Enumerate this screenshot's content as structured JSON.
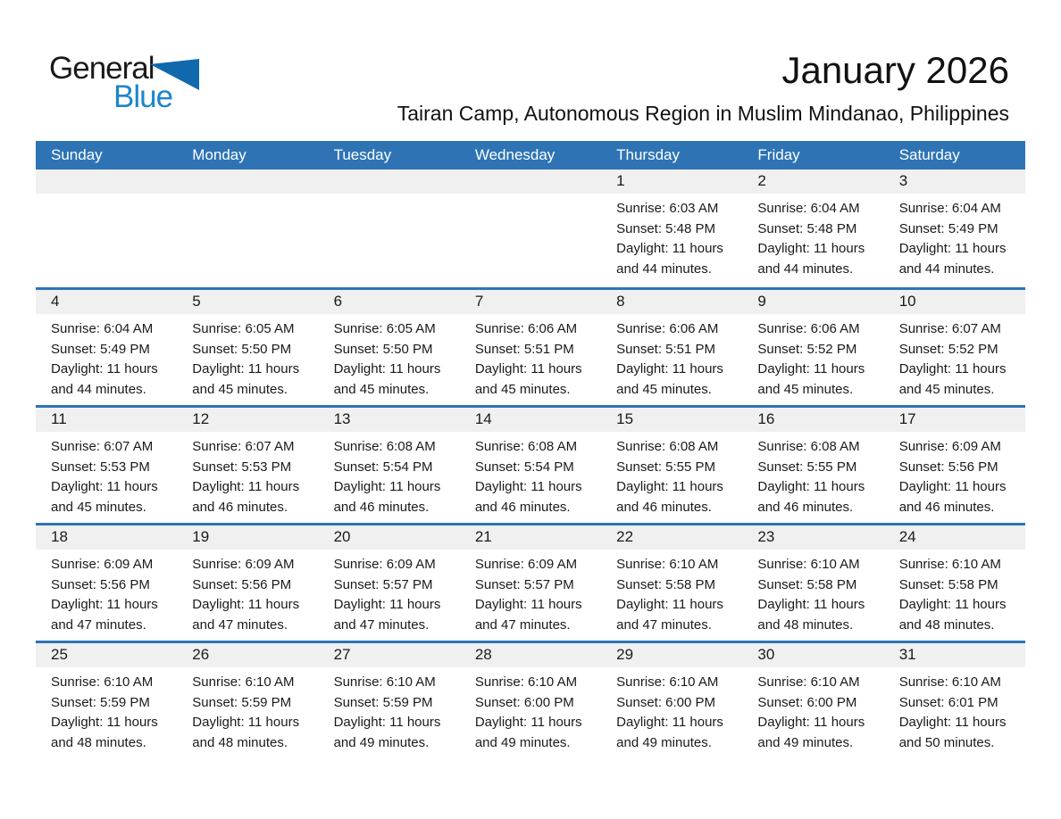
{
  "logo": {
    "text_general": "General",
    "text_blue": "Blue",
    "triangle_icon": "blue-triangle",
    "color_general": "#1a1a1a",
    "color_blue": "#1d86c8",
    "color_triangle": "#1068ad"
  },
  "header": {
    "title": "January 2026",
    "subtitle": "Tairan Camp, Autonomous Region in Muslim Mindanao, Philippines"
  },
  "colors": {
    "header_bar": "#2e74b5",
    "week_divider": "#2e74b5",
    "day_number_band": "#f0f0f0",
    "header_text": "#ffffff",
    "body_text": "#1a1a1a"
  },
  "labels": {
    "sunrise": "Sunrise:",
    "sunset": "Sunset:",
    "daylight": "Daylight:"
  },
  "weekdays": [
    "Sunday",
    "Monday",
    "Tuesday",
    "Wednesday",
    "Thursday",
    "Friday",
    "Saturday"
  ],
  "weeks": [
    {
      "days": [
        null,
        null,
        null,
        null,
        {
          "date": "1",
          "sunrise": "6:03 AM",
          "sunset": "5:48 PM",
          "daylight": "11 hours and 44 minutes."
        },
        {
          "date": "2",
          "sunrise": "6:04 AM",
          "sunset": "5:48 PM",
          "daylight": "11 hours and 44 minutes."
        },
        {
          "date": "3",
          "sunrise": "6:04 AM",
          "sunset": "5:49 PM",
          "daylight": "11 hours and 44 minutes."
        }
      ]
    },
    {
      "days": [
        {
          "date": "4",
          "sunrise": "6:04 AM",
          "sunset": "5:49 PM",
          "daylight": "11 hours and 44 minutes."
        },
        {
          "date": "5",
          "sunrise": "6:05 AM",
          "sunset": "5:50 PM",
          "daylight": "11 hours and 45 minutes."
        },
        {
          "date": "6",
          "sunrise": "6:05 AM",
          "sunset": "5:50 PM",
          "daylight": "11 hours and 45 minutes."
        },
        {
          "date": "7",
          "sunrise": "6:06 AM",
          "sunset": "5:51 PM",
          "daylight": "11 hours and 45 minutes."
        },
        {
          "date": "8",
          "sunrise": "6:06 AM",
          "sunset": "5:51 PM",
          "daylight": "11 hours and 45 minutes."
        },
        {
          "date": "9",
          "sunrise": "6:06 AM",
          "sunset": "5:52 PM",
          "daylight": "11 hours and 45 minutes."
        },
        {
          "date": "10",
          "sunrise": "6:07 AM",
          "sunset": "5:52 PM",
          "daylight": "11 hours and 45 minutes."
        }
      ]
    },
    {
      "days": [
        {
          "date": "11",
          "sunrise": "6:07 AM",
          "sunset": "5:53 PM",
          "daylight": "11 hours and 45 minutes."
        },
        {
          "date": "12",
          "sunrise": "6:07 AM",
          "sunset": "5:53 PM",
          "daylight": "11 hours and 46 minutes."
        },
        {
          "date": "13",
          "sunrise": "6:08 AM",
          "sunset": "5:54 PM",
          "daylight": "11 hours and 46 minutes."
        },
        {
          "date": "14",
          "sunrise": "6:08 AM",
          "sunset": "5:54 PM",
          "daylight": "11 hours and 46 minutes."
        },
        {
          "date": "15",
          "sunrise": "6:08 AM",
          "sunset": "5:55 PM",
          "daylight": "11 hours and 46 minutes."
        },
        {
          "date": "16",
          "sunrise": "6:08 AM",
          "sunset": "5:55 PM",
          "daylight": "11 hours and 46 minutes."
        },
        {
          "date": "17",
          "sunrise": "6:09 AM",
          "sunset": "5:56 PM",
          "daylight": "11 hours and 46 minutes."
        }
      ]
    },
    {
      "days": [
        {
          "date": "18",
          "sunrise": "6:09 AM",
          "sunset": "5:56 PM",
          "daylight": "11 hours and 47 minutes."
        },
        {
          "date": "19",
          "sunrise": "6:09 AM",
          "sunset": "5:56 PM",
          "daylight": "11 hours and 47 minutes."
        },
        {
          "date": "20",
          "sunrise": "6:09 AM",
          "sunset": "5:57 PM",
          "daylight": "11 hours and 47 minutes."
        },
        {
          "date": "21",
          "sunrise": "6:09 AM",
          "sunset": "5:57 PM",
          "daylight": "11 hours and 47 minutes."
        },
        {
          "date": "22",
          "sunrise": "6:10 AM",
          "sunset": "5:58 PM",
          "daylight": "11 hours and 47 minutes."
        },
        {
          "date": "23",
          "sunrise": "6:10 AM",
          "sunset": "5:58 PM",
          "daylight": "11 hours and 48 minutes."
        },
        {
          "date": "24",
          "sunrise": "6:10 AM",
          "sunset": "5:58 PM",
          "daylight": "11 hours and 48 minutes."
        }
      ]
    },
    {
      "days": [
        {
          "date": "25",
          "sunrise": "6:10 AM",
          "sunset": "5:59 PM",
          "daylight": "11 hours and 48 minutes."
        },
        {
          "date": "26",
          "sunrise": "6:10 AM",
          "sunset": "5:59 PM",
          "daylight": "11 hours and 48 minutes."
        },
        {
          "date": "27",
          "sunrise": "6:10 AM",
          "sunset": "5:59 PM",
          "daylight": "11 hours and 49 minutes."
        },
        {
          "date": "28",
          "sunrise": "6:10 AM",
          "sunset": "6:00 PM",
          "daylight": "11 hours and 49 minutes."
        },
        {
          "date": "29",
          "sunrise": "6:10 AM",
          "sunset": "6:00 PM",
          "daylight": "11 hours and 49 minutes."
        },
        {
          "date": "30",
          "sunrise": "6:10 AM",
          "sunset": "6:00 PM",
          "daylight": "11 hours and 49 minutes."
        },
        {
          "date": "31",
          "sunrise": "6:10 AM",
          "sunset": "6:01 PM",
          "daylight": "11 hours and 50 minutes."
        }
      ]
    }
  ]
}
